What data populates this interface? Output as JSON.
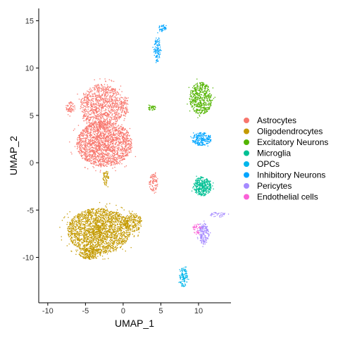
{
  "chart_data": {
    "type": "scatter",
    "title": "",
    "xlabel": "UMAP_1",
    "ylabel": "UMAP_2",
    "xlim": [
      -11.2,
      14.3
    ],
    "ylim": [
      -14.8,
      16.3
    ],
    "xticks": [
      -10,
      -5,
      0,
      5,
      10
    ],
    "yticks": [
      -10,
      -5,
      0,
      5,
      10,
      15
    ],
    "grid": false,
    "legend_position": "right",
    "series": [
      {
        "name": "Astrocytes",
        "color": "#F8766D",
        "clusters": [
          {
            "cx": -2.5,
            "cy": 2.0,
            "rx": 3.7,
            "ry": 2.4,
            "n": 1900
          },
          {
            "cx": -2.8,
            "cy": 6.0,
            "rx": 2.9,
            "ry": 2.3,
            "n": 1000
          },
          {
            "cx": 0.2,
            "cy": 6.0,
            "rx": 0.45,
            "ry": 1.1,
            "n": 70
          },
          {
            "cx": -7.0,
            "cy": 5.8,
            "rx": 0.6,
            "ry": 0.7,
            "n": 60
          },
          {
            "cx": 4.0,
            "cy": -2.1,
            "rx": 0.6,
            "ry": 0.9,
            "n": 90
          }
        ]
      },
      {
        "name": "Oligodendrocytes",
        "color": "#C49A00",
        "clusters": [
          {
            "cx": -3.2,
            "cy": -7.2,
            "rx": 4.2,
            "ry": 2.4,
            "n": 2200
          },
          {
            "cx": 1.3,
            "cy": -6.3,
            "rx": 1.2,
            "ry": 1.0,
            "n": 220
          },
          {
            "cx": -4.4,
            "cy": -9.6,
            "rx": 1.5,
            "ry": 0.6,
            "n": 200
          },
          {
            "cx": -2.3,
            "cy": -1.6,
            "rx": 0.4,
            "ry": 0.9,
            "n": 60
          }
        ]
      },
      {
        "name": "Excitatory Neurons",
        "color": "#53B400",
        "clusters": [
          {
            "cx": 10.3,
            "cy": 6.8,
            "rx": 1.5,
            "ry": 1.7,
            "n": 520
          },
          {
            "cx": 3.8,
            "cy": 5.8,
            "rx": 0.5,
            "ry": 0.3,
            "n": 40
          }
        ]
      },
      {
        "name": "Microglia",
        "color": "#00C094",
        "clusters": [
          {
            "cx": 10.5,
            "cy": -2.5,
            "rx": 1.2,
            "ry": 1.0,
            "n": 360
          }
        ]
      },
      {
        "name": "OPCs",
        "color": "#00B6EB",
        "clusters": [
          {
            "cx": 8.0,
            "cy": -12.1,
            "rx": 0.55,
            "ry": 1.0,
            "n": 120
          }
        ]
      },
      {
        "name": "Inhibitory Neurons",
        "color": "#00A5FF",
        "clusters": [
          {
            "cx": 10.4,
            "cy": 2.5,
            "rx": 1.3,
            "ry": 0.7,
            "n": 220
          },
          {
            "cx": 4.5,
            "cy": 12.0,
            "rx": 0.45,
            "ry": 1.4,
            "n": 110
          },
          {
            "cx": 5.2,
            "cy": 14.2,
            "rx": 0.5,
            "ry": 0.4,
            "n": 50
          }
        ]
      },
      {
        "name": "Pericytes",
        "color": "#A58AFF",
        "clusters": [
          {
            "cx": 10.7,
            "cy": -7.5,
            "rx": 0.7,
            "ry": 1.1,
            "n": 170
          },
          {
            "cx": 12.5,
            "cy": -5.5,
            "rx": 1.2,
            "ry": 0.3,
            "n": 40
          }
        ]
      },
      {
        "name": "Endothelial cells",
        "color": "#FB61D7",
        "clusters": [
          {
            "cx": 9.8,
            "cy": -7.0,
            "rx": 0.5,
            "ry": 0.6,
            "n": 40
          }
        ]
      }
    ]
  }
}
